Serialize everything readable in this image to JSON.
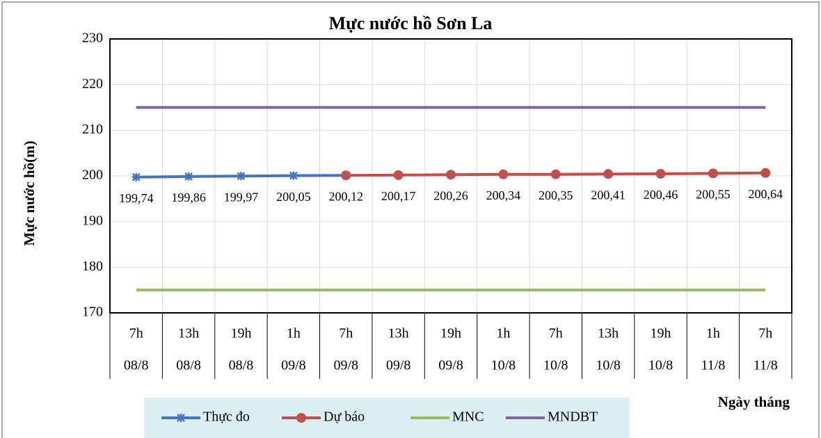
{
  "chart_data": {
    "type": "line",
    "title": "Mực nước hồ Sơn La",
    "y_label": "Mực nước hồ(m)",
    "x_label": "Ngày tháng",
    "categories": [
      [
        "7h",
        "08/8"
      ],
      [
        "13h",
        "08/8"
      ],
      [
        "19h",
        "08/8"
      ],
      [
        "1h",
        "09/8"
      ],
      [
        "7h",
        "09/8"
      ],
      [
        "13h",
        "09/8"
      ],
      [
        "19h",
        "09/8"
      ],
      [
        "1h",
        "10/8"
      ],
      [
        "7h",
        "10/8"
      ],
      [
        "13h",
        "10/8"
      ],
      [
        "19h",
        "10/8"
      ],
      [
        "1h",
        "11/8"
      ],
      [
        "7h",
        "11/8"
      ]
    ],
    "series": [
      {
        "name": "Thực đo",
        "color": "#4472c4",
        "marker": "star",
        "values": [
          199.74,
          199.86,
          199.97,
          200.05,
          200.12,
          null,
          null,
          null,
          null,
          null,
          null,
          null,
          null
        ],
        "value_labels": [
          "199,74",
          "199,86",
          "199,97",
          "200,05",
          null,
          null,
          null,
          null,
          null,
          null,
          null,
          null,
          null
        ]
      },
      {
        "name": "Dự báo",
        "color": "#c0504d",
        "marker": "circle",
        "values": [
          null,
          null,
          null,
          null,
          200.12,
          200.17,
          200.26,
          200.34,
          200.35,
          200.41,
          200.46,
          200.55,
          200.64
        ],
        "value_labels": [
          null,
          null,
          null,
          null,
          "200,12",
          "200,17",
          "200,26",
          "200,34",
          "200,35",
          "200,41",
          "200,46",
          "200,55",
          "200,64"
        ]
      },
      {
        "name": "MNC",
        "color": "#9bbb59",
        "marker": "none",
        "values": [
          175,
          175,
          175,
          175,
          175,
          175,
          175,
          175,
          175,
          175,
          175,
          175,
          175
        ]
      },
      {
        "name": "MNDBT",
        "color": "#8064a2",
        "marker": "none",
        "values": [
          215,
          215,
          215,
          215,
          215,
          215,
          215,
          215,
          215,
          215,
          215,
          215,
          215
        ]
      }
    ],
    "ylim": [
      170,
      230
    ],
    "yticks": [
      170,
      180,
      190,
      200,
      210,
      220,
      230
    ],
    "grid": true
  }
}
